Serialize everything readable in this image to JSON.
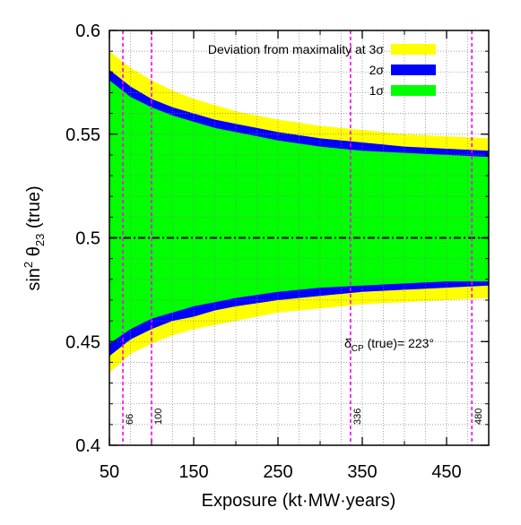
{
  "chart_data": {
    "type": "area",
    "xlabel": "Exposure (kt·MW·years)",
    "ylabel_main": "sin",
    "ylabel_sup": "2",
    "ylabel_theta": " θ",
    "ylabel_sub": "23",
    "ylabel_tail": " (true)",
    "xlim": [
      50,
      500
    ],
    "ylim": [
      0.4,
      0.6
    ],
    "x_ticks": [
      50,
      150,
      250,
      350,
      450
    ],
    "x_tick_labels": [
      "50",
      "150",
      "250",
      "350",
      "450"
    ],
    "y_ticks": [
      0.4,
      0.45,
      0.5,
      0.55,
      0.6
    ],
    "y_tick_labels": [
      "0.4",
      "0.45",
      "0.5",
      "0.55",
      "0.6"
    ],
    "grid": true,
    "legend_position": "top-right",
    "legend": [
      {
        "label": "Deviation from maximality at 3σ",
        "color": "#ffff00"
      },
      {
        "label": "2σ",
        "color": "#0000ff"
      },
      {
        "label": "1σ",
        "color": "#00ff00"
      }
    ],
    "annotation": {
      "main": "δ",
      "sub": "CP",
      "tail": " (true)= 223°"
    },
    "reference_line": {
      "y": 0.5,
      "color": "#000000",
      "style": "dash-dot"
    },
    "vertical_markers": [
      {
        "x": 66,
        "label": "66"
      },
      {
        "x": 100,
        "label": "100"
      },
      {
        "x": 336,
        "label": "336"
      },
      {
        "x": 480,
        "label": "480"
      }
    ],
    "bands": {
      "x": [
        50,
        75,
        100,
        125,
        150,
        175,
        200,
        250,
        300,
        350,
        400,
        450,
        500
      ],
      "upper_3sigma": [
        0.59,
        0.582,
        0.576,
        0.571,
        0.567,
        0.564,
        0.561,
        0.557,
        0.554,
        0.552,
        0.55,
        0.549,
        0.548
      ],
      "upper_2sigma_outer": [
        0.581,
        0.573,
        0.567,
        0.563,
        0.56,
        0.557,
        0.555,
        0.551,
        0.548,
        0.546,
        0.544,
        0.543,
        0.542
      ],
      "upper_2sigma_inner": [
        0.576,
        0.568,
        0.563,
        0.559,
        0.556,
        0.553,
        0.551,
        0.547,
        0.544,
        0.542,
        0.541,
        0.54,
        0.539
      ],
      "lower_2sigma_inner": [
        0.449,
        0.456,
        0.461,
        0.464,
        0.467,
        0.469,
        0.471,
        0.474,
        0.476,
        0.477,
        0.478,
        0.479,
        0.479
      ],
      "lower_2sigma_outer": [
        0.443,
        0.451,
        0.456,
        0.46,
        0.462,
        0.465,
        0.467,
        0.47,
        0.472,
        0.474,
        0.475,
        0.476,
        0.477
      ],
      "lower_3sigma": [
        0.435,
        0.444,
        0.449,
        0.453,
        0.456,
        0.458,
        0.46,
        0.464,
        0.466,
        0.468,
        0.469,
        0.47,
        0.471
      ]
    },
    "colors": {
      "sigma3": "#ffff00",
      "sigma2": "#0000ff",
      "sigma1": "#00ff00",
      "marker": "#ff00ff",
      "grid": "#808080"
    }
  }
}
